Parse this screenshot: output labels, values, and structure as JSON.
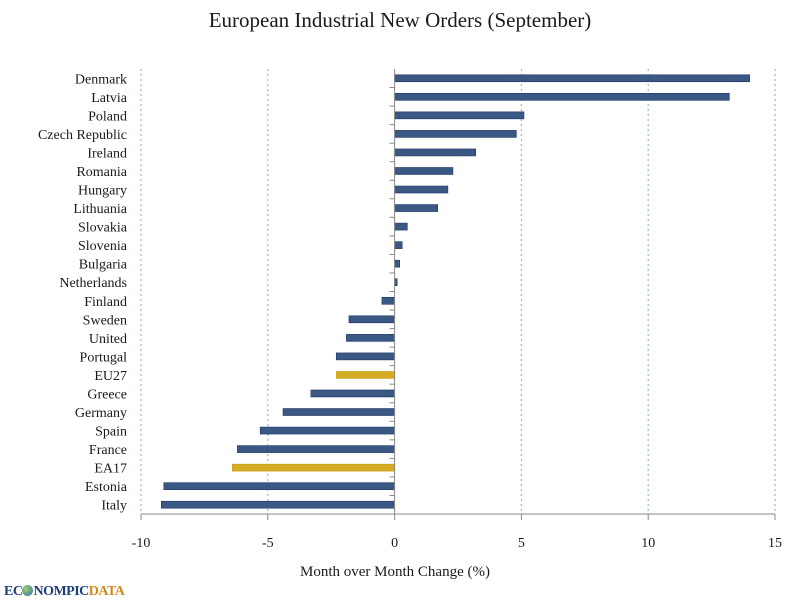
{
  "chart_data": {
    "type": "bar",
    "orientation": "horizontal",
    "title": "European Industrial New Orders (September)",
    "xlabel": "Month over Month Change (%)",
    "ylabel": "",
    "xlim": [
      -10,
      15
    ],
    "xticks": [
      -10,
      -5,
      0,
      5,
      10,
      15
    ],
    "grid": "vertical dotted",
    "categories": [
      "Denmark",
      "Latvia",
      "Poland",
      "Czech Republic",
      "Ireland",
      "Romania",
      "Hungary",
      "Lithuania",
      "Slovakia",
      "Slovenia",
      "Bulgaria",
      "Netherlands",
      "Finland",
      "Sweden",
      "United",
      "Portugal",
      "EU27",
      "Greece",
      "Germany",
      "Spain",
      "France",
      "EA17",
      "Estonia",
      "Italy"
    ],
    "values": [
      14.0,
      13.2,
      5.1,
      4.8,
      3.2,
      2.3,
      2.1,
      1.7,
      0.5,
      0.3,
      0.2,
      0.1,
      -0.5,
      -1.8,
      -1.9,
      -2.3,
      -2.3,
      -3.3,
      -4.4,
      -5.3,
      -6.2,
      -6.4,
      -9.1,
      -9.2
    ],
    "highlighted": [
      "EU27",
      "EA17"
    ],
    "colors": {
      "default": "#3b5784",
      "highlight": "#d4ad22",
      "grid": "#7aaad6"
    }
  },
  "branding": {
    "logo_part1": "EC",
    "logo_part2": "NOMPIC",
    "logo_part3": "DATA"
  }
}
